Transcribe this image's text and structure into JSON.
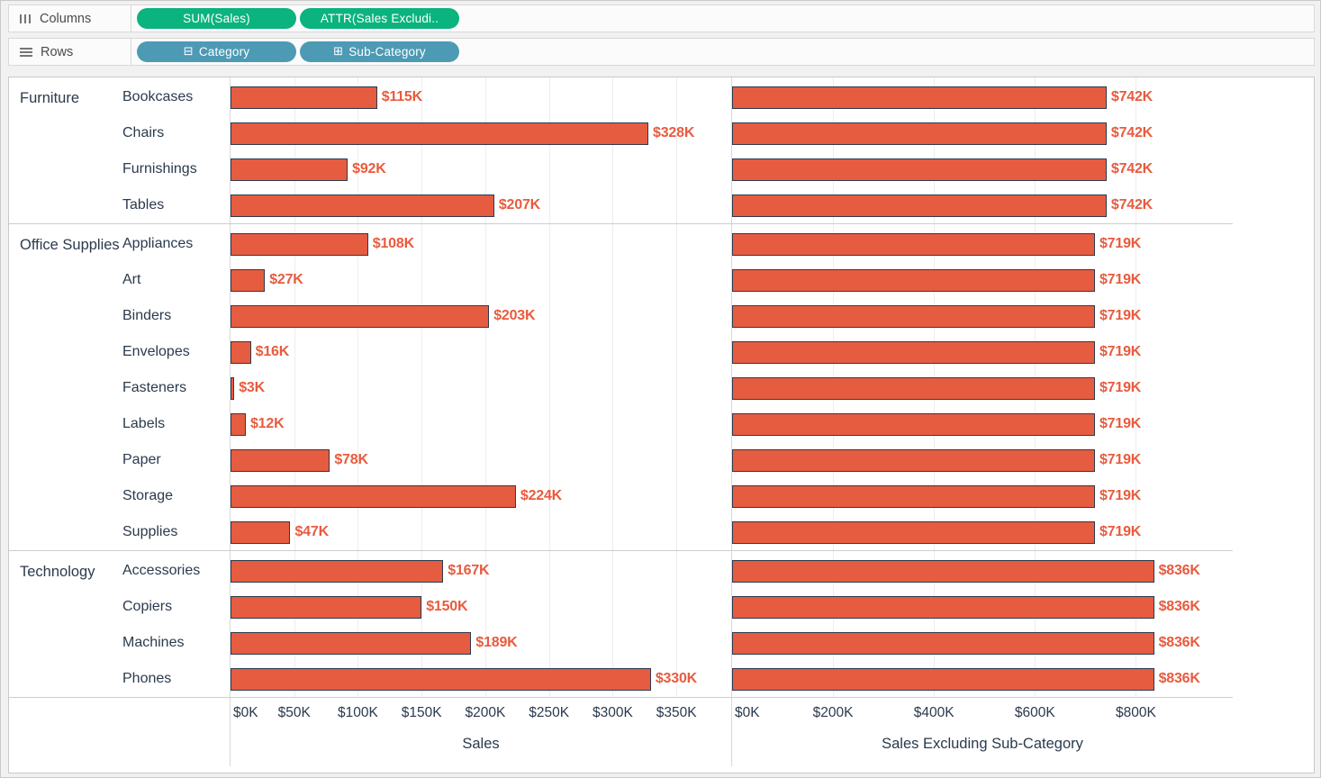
{
  "shelves": {
    "columns": {
      "label": "Columns",
      "pills": [
        {
          "label": "SUM(Sales)",
          "type": "measure"
        },
        {
          "label": "ATTR(Sales Excludi..",
          "type": "measure"
        }
      ]
    },
    "rows": {
      "label": "Rows",
      "pills": [
        {
          "label": "Category",
          "type": "dimension",
          "prefix_glyph": "⊟",
          "prefix_icon": "collapse-box-icon"
        },
        {
          "label": "Sub-Category",
          "type": "dimension",
          "prefix_glyph": "⊞",
          "prefix_icon": "expand-box-icon"
        }
      ]
    }
  },
  "chart_data": {
    "type": "bar",
    "orientation": "horizontal",
    "panels": [
      {
        "title": "Sales",
        "value_key": "sales",
        "label_key": "sales_label",
        "axis_max": 393,
        "ticks": [
          {
            "value": 0,
            "label": "$0K"
          },
          {
            "value": 50,
            "label": "$50K"
          },
          {
            "value": 100,
            "label": "$100K"
          },
          {
            "value": 150,
            "label": "$150K"
          },
          {
            "value": 200,
            "label": "$200K"
          },
          {
            "value": 250,
            "label": "$250K"
          },
          {
            "value": 300,
            "label": "$300K"
          },
          {
            "value": 350,
            "label": "$350K"
          }
        ]
      },
      {
        "title": "Sales Excluding Sub-Category",
        "value_key": "excl",
        "label_key": "excl_label",
        "axis_max": 992,
        "ticks": [
          {
            "value": 0,
            "label": "$0K"
          },
          {
            "value": 200,
            "label": "$200K"
          },
          {
            "value": 400,
            "label": "$400K"
          },
          {
            "value": 600,
            "label": "$600K"
          },
          {
            "value": 800,
            "label": "$800K"
          }
        ]
      }
    ],
    "groups": [
      {
        "category": "Furniture",
        "rows": [
          {
            "label": "Bookcases",
            "sales": 115,
            "sales_label": "$115K",
            "excl": 742,
            "excl_label": "$742K"
          },
          {
            "label": "Chairs",
            "sales": 328,
            "sales_label": "$328K",
            "excl": 742,
            "excl_label": "$742K"
          },
          {
            "label": "Furnishings",
            "sales": 92,
            "sales_label": "$92K",
            "excl": 742,
            "excl_label": "$742K"
          },
          {
            "label": "Tables",
            "sales": 207,
            "sales_label": "$207K",
            "excl": 742,
            "excl_label": "$742K"
          }
        ]
      },
      {
        "category": "Office Supplies",
        "rows": [
          {
            "label": "Appliances",
            "sales": 108,
            "sales_label": "$108K",
            "excl": 719,
            "excl_label": "$719K"
          },
          {
            "label": "Art",
            "sales": 27,
            "sales_label": "$27K",
            "excl": 719,
            "excl_label": "$719K"
          },
          {
            "label": "Binders",
            "sales": 203,
            "sales_label": "$203K",
            "excl": 719,
            "excl_label": "$719K"
          },
          {
            "label": "Envelopes",
            "sales": 16,
            "sales_label": "$16K",
            "excl": 719,
            "excl_label": "$719K"
          },
          {
            "label": "Fasteners",
            "sales": 3,
            "sales_label": "$3K",
            "excl": 719,
            "excl_label": "$719K"
          },
          {
            "label": "Labels",
            "sales": 12,
            "sales_label": "$12K",
            "excl": 719,
            "excl_label": "$719K"
          },
          {
            "label": "Paper",
            "sales": 78,
            "sales_label": "$78K",
            "excl": 719,
            "excl_label": "$719K"
          },
          {
            "label": "Storage",
            "sales": 224,
            "sales_label": "$224K",
            "excl": 719,
            "excl_label": "$719K"
          },
          {
            "label": "Supplies",
            "sales": 47,
            "sales_label": "$47K",
            "excl": 719,
            "excl_label": "$719K"
          }
        ]
      },
      {
        "category": "Technology",
        "rows": [
          {
            "label": "Accessories",
            "sales": 167,
            "sales_label": "$167K",
            "excl": 836,
            "excl_label": "$836K"
          },
          {
            "label": "Copiers",
            "sales": 150,
            "sales_label": "$150K",
            "excl": 836,
            "excl_label": "$836K"
          },
          {
            "label": "Machines",
            "sales": 189,
            "sales_label": "$189K",
            "excl": 836,
            "excl_label": "$836K"
          },
          {
            "label": "Phones",
            "sales": 330,
            "sales_label": "$330K",
            "excl": 836,
            "excl_label": "$836K"
          }
        ]
      }
    ]
  },
  "colors": {
    "bar_fill": "#e65c40",
    "bar_border": "#2c3a4d",
    "value_label": "#e85b3e",
    "measure_pill": "#0bb37e",
    "dimension_pill": "#4d9ab5",
    "header_text": "#2b3a4d"
  }
}
